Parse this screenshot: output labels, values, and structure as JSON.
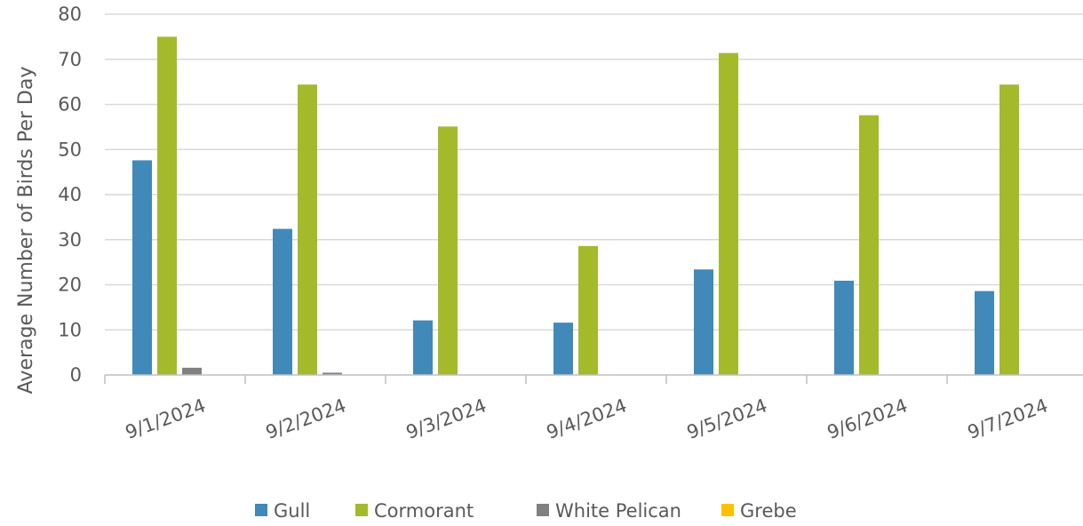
{
  "chart_data": {
    "type": "bar",
    "title": "",
    "xlabel": "",
    "ylabel": "Average Number of Birds Per Day",
    "ylim": [
      0,
      80
    ],
    "yticks": [
      0,
      10,
      20,
      30,
      40,
      50,
      60,
      70,
      80
    ],
    "grid": true,
    "legend_position": "bottom",
    "categories": [
      "9/1/2024",
      "9/2/2024",
      "9/3/2024",
      "9/4/2024",
      "9/5/2024",
      "9/6/2024",
      "9/7/2024"
    ],
    "series": [
      {
        "name": "Gull",
        "color": "#4189b8",
        "values": [
          47.6,
          32.4,
          12.1,
          11.6,
          23.4,
          20.9,
          18.6
        ]
      },
      {
        "name": "Cormorant",
        "color": "#a5ba2b",
        "values": [
          75.0,
          64.4,
          55.1,
          28.6,
          71.4,
          57.6,
          64.4
        ]
      },
      {
        "name": "White Pelican",
        "color": "#808080",
        "values": [
          1.6,
          0.5,
          0,
          0,
          0,
          0,
          0
        ]
      },
      {
        "name": "Grebe",
        "color": "#ffc000",
        "values": [
          0,
          0,
          0,
          0,
          0,
          0,
          0
        ]
      }
    ]
  }
}
